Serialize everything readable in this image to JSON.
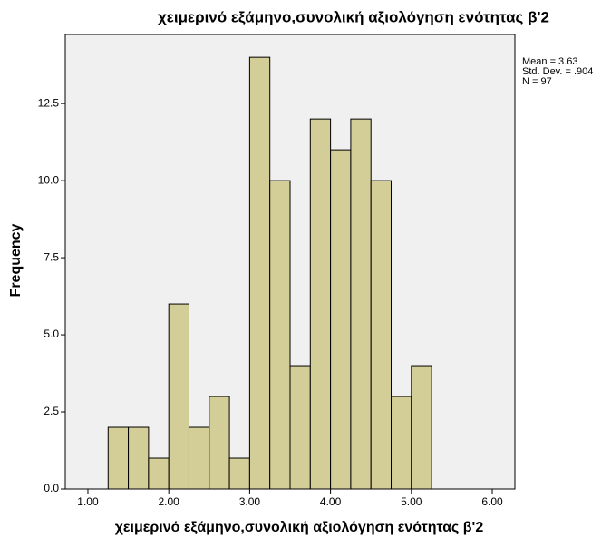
{
  "chart_data": {
    "type": "histogram",
    "title": "χειμερινό εξάμηνο,συνολική αξιολόγηση ενότητας β'2",
    "x_label": "χειμερινό εξάμηνο,συνολική αξιολόγηση ενότητας β'2",
    "y_label": "Frequency",
    "annotations": [
      "Mean = 3.63",
      "Std. Dev. = .904",
      "N = 97"
    ],
    "bins": [
      1.25,
      1.5,
      1.75,
      2.0,
      2.25,
      2.5,
      2.75,
      3.0,
      3.25,
      3.5,
      3.75,
      4.0,
      4.25,
      4.5,
      4.75,
      5.0,
      5.25
    ],
    "values": [
      2,
      2,
      1,
      6,
      2,
      3,
      1,
      14,
      10,
      4,
      12,
      11,
      12,
      10,
      3,
      4
    ],
    "color": "#d3ce97",
    "xlim": [
      0.72,
      6.28
    ],
    "ylim": [
      0,
      14.74
    ],
    "xticks": [
      {
        "value": 1,
        "label": "1.00"
      },
      {
        "value": 2,
        "label": "2.00"
      },
      {
        "value": 3,
        "label": "3.00"
      },
      {
        "value": 4,
        "label": "4.00"
      },
      {
        "value": 5,
        "label": "5.00"
      },
      {
        "value": 6,
        "label": "6.00"
      }
    ],
    "yticks": [
      {
        "value": 0,
        "label": "0.0"
      },
      {
        "value": 2.5,
        "label": "2.5"
      },
      {
        "value": 5,
        "label": "5.0"
      },
      {
        "value": 7.5,
        "label": "7.5"
      },
      {
        "value": 10,
        "label": "10.0"
      },
      {
        "value": 12.5,
        "label": "12.5"
      }
    ]
  }
}
